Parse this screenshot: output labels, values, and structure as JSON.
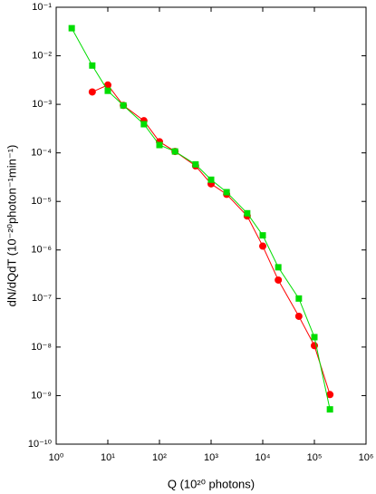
{
  "chart_data": {
    "type": "scatter-line",
    "x_label": "Q (10²⁰ photons)",
    "y_label": "dN/dQdT (10⁻²⁰photon⁻¹min⁻¹)",
    "xscale": "log",
    "yscale": "log",
    "xlim": [
      1,
      1000000
    ],
    "xticks": [
      {
        "value": 1,
        "label": "10⁰"
      },
      {
        "value": 10,
        "label": "10¹"
      },
      {
        "value": 100,
        "label": "10²"
      },
      {
        "value": 1000,
        "label": "10³"
      },
      {
        "value": 10000,
        "label": "10⁴"
      },
      {
        "value": 100000,
        "label": "10⁵"
      },
      {
        "value": 1000000,
        "label": "10⁶"
      }
    ],
    "ylim": [
      1e-10,
      0.1
    ],
    "yticks": [
      {
        "value": 1e-10,
        "label": "10⁻¹⁰"
      },
      {
        "value": 1e-09,
        "label": "10⁻⁹"
      },
      {
        "value": 1e-08,
        "label": "10⁻⁸"
      },
      {
        "value": 1e-07,
        "label": "10⁻⁷"
      },
      {
        "value": 1e-06,
        "label": "10⁻⁶"
      },
      {
        "value": 1e-05,
        "label": "10⁻⁵"
      },
      {
        "value": 0.0001,
        "label": "10⁻⁴"
      },
      {
        "value": 0.001,
        "label": "10⁻³"
      },
      {
        "value": 0.01,
        "label": "10⁻²"
      },
      {
        "value": 0.1,
        "label": "10⁻¹"
      }
    ],
    "series": [
      {
        "color": "#ff0000",
        "marker": "circle",
        "x": [
          5,
          10,
          20,
          50,
          100,
          200,
          500,
          1000,
          2000,
          5000,
          10000,
          20000,
          50000,
          100000,
          200000
        ],
        "values": [
          0.0018,
          0.0025,
          0.00095,
          0.00046,
          0.00017,
          0.000107,
          5.4e-05,
          2.3e-05,
          1.4e-05,
          5e-06,
          1.2e-06,
          2.4e-07,
          4.3e-08,
          1.07e-08,
          1.05e-09
        ]
      },
      {
        "color": "#00dd00",
        "marker": "square",
        "x": [
          2,
          5,
          10,
          20,
          50,
          100,
          200,
          500,
          1000,
          2000,
          5000,
          10000,
          20000,
          50000,
          100000,
          200000
        ],
        "values": [
          0.037,
          0.0063,
          0.0019,
          0.00095,
          0.00039,
          0.000145,
          0.000107,
          5.8e-05,
          2.8e-05,
          1.55e-05,
          5.7e-06,
          2e-06,
          4.4e-07,
          1e-07,
          1.6e-08,
          5.2e-10
        ]
      }
    ]
  }
}
